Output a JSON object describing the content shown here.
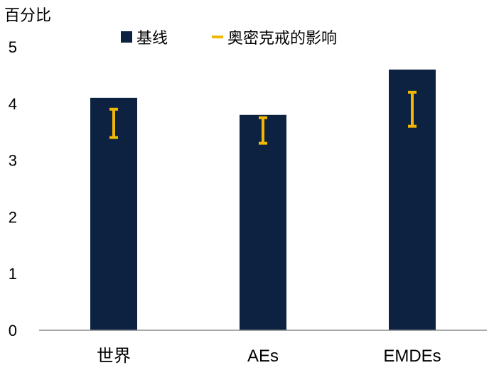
{
  "chart_data": {
    "type": "bar",
    "ylabel": "百分比",
    "categories": [
      "世界",
      "AEs",
      "EMDEs"
    ],
    "series": [
      {
        "name": "基线",
        "values": [
          4.1,
          3.8,
          4.6
        ],
        "color": "#0d2240"
      }
    ],
    "ranges": {
      "name": "奥密克戒的影响",
      "color": "#f2b705",
      "low": [
        3.4,
        3.3,
        3.6
      ],
      "high": [
        3.9,
        3.75,
        4.2
      ]
    },
    "ylim": [
      0,
      5
    ],
    "yticks": [
      "0",
      "1",
      "2",
      "3",
      "4",
      "5"
    ],
    "grid": false,
    "legend_position": "top"
  }
}
